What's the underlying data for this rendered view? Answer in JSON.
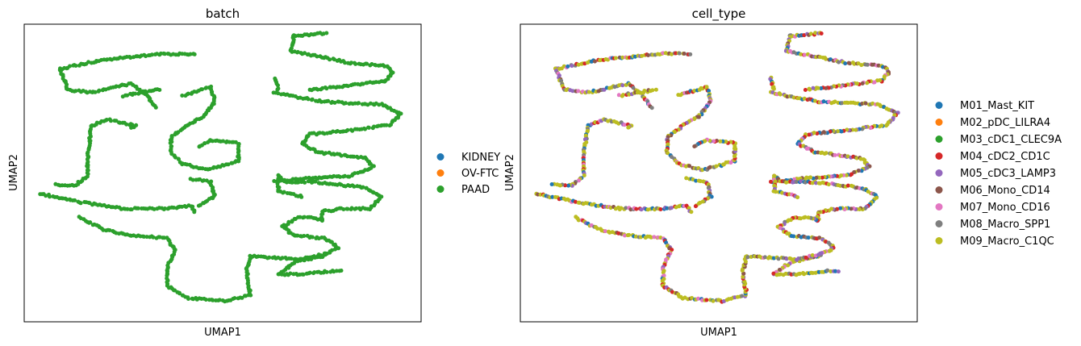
{
  "chart_data": [
    {
      "type": "scatter",
      "title": "batch",
      "xlabel": "UMAP1",
      "ylabel": "UMAP2",
      "grid": false,
      "legend_position": "right",
      "legend": [
        {
          "label": "KIDNEY",
          "color": "#1f77b4"
        },
        {
          "label": "OV-FTC",
          "color": "#ff7f0e"
        },
        {
          "label": "PAAD",
          "color": "#2ca02c"
        }
      ],
      "point_groups": [
        "PAAD"
      ],
      "xlim": [
        0,
        100
      ],
      "ylim": [
        0,
        100
      ],
      "curves": [
        [
          [
            9,
            85
          ],
          [
            20,
            88
          ],
          [
            35,
            90
          ],
          [
            43,
            90
          ]
        ],
        [
          [
            9,
            85
          ],
          [
            11,
            78
          ],
          [
            17,
            77
          ],
          [
            27,
            80
          ],
          [
            31,
            76
          ],
          [
            33,
            72
          ]
        ],
        [
          [
            63,
            82
          ],
          [
            64,
            78
          ]
        ],
        [
          [
            63,
            77
          ],
          [
            75,
            74
          ],
          [
            90,
            73
          ],
          [
            95,
            70
          ],
          [
            92,
            66
          ],
          [
            80,
            64
          ],
          [
            72,
            63
          ],
          [
            70,
            60
          ],
          [
            74,
            57
          ],
          [
            86,
            55
          ],
          [
            88,
            52
          ],
          [
            82,
            49
          ],
          [
            70,
            48
          ],
          [
            63,
            47
          ]
        ],
        [
          [
            68,
            96
          ],
          [
            76,
            97
          ]
        ],
        [
          [
            68,
            96
          ],
          [
            67,
            91
          ],
          [
            75,
            89
          ],
          [
            82,
            87
          ],
          [
            91,
            86
          ],
          [
            93,
            84
          ],
          [
            91,
            81
          ],
          [
            85,
            80
          ],
          [
            79,
            79
          ],
          [
            72,
            78
          ]
        ],
        [
          [
            40,
            76
          ],
          [
            47,
            79
          ],
          [
            48,
            74
          ],
          [
            45,
            69
          ],
          [
            41,
            66
          ],
          [
            37,
            62
          ],
          [
            37,
            57
          ],
          [
            40,
            53
          ],
          [
            46,
            51
          ],
          [
            54,
            54
          ],
          [
            54,
            60
          ],
          [
            47,
            61
          ],
          [
            44,
            59
          ]
        ],
        [
          [
            25,
            76
          ],
          [
            34,
            78
          ]
        ],
        [
          [
            17,
            66
          ],
          [
            21,
            68
          ],
          [
            28,
            66
          ],
          [
            27,
            65
          ]
        ],
        [
          [
            17,
            66
          ],
          [
            16,
            56
          ],
          [
            16,
            49
          ],
          [
            13,
            46
          ],
          [
            8,
            46
          ]
        ],
        [
          [
            64,
            49
          ],
          [
            66,
            47
          ],
          [
            73,
            47
          ],
          [
            80,
            46
          ],
          [
            86,
            45
          ],
          [
            90,
            42
          ],
          [
            87,
            38
          ],
          [
            80,
            38
          ],
          [
            75,
            37
          ],
          [
            75,
            34
          ]
        ],
        [
          [
            64,
            49
          ],
          [
            64,
            44
          ],
          [
            70,
            42
          ]
        ],
        [
          [
            4,
            43
          ],
          [
            15,
            40
          ],
          [
            25,
            38
          ],
          [
            35,
            38
          ],
          [
            42,
            39
          ],
          [
            43,
            37
          ]
        ],
        [
          [
            42,
            48
          ],
          [
            47,
            47
          ],
          [
            48,
            42
          ],
          [
            44,
            39
          ]
        ],
        [
          [
            14,
            35
          ],
          [
            20,
            31
          ],
          [
            27,
            29
          ],
          [
            36,
            28
          ],
          [
            38,
            24
          ],
          [
            36,
            18
          ],
          [
            36,
            12
          ],
          [
            41,
            8
          ],
          [
            51,
            7
          ],
          [
            57,
            9
          ],
          [
            56,
            17
          ],
          [
            57,
            22
          ]
        ],
        [
          [
            75,
            34
          ],
          [
            73,
            35
          ],
          [
            69,
            35
          ],
          [
            65,
            32
          ],
          [
            68,
            29
          ],
          [
            76,
            28
          ],
          [
            79,
            25
          ],
          [
            75,
            22
          ],
          [
            68,
            20
          ],
          [
            66,
            18
          ],
          [
            64,
            16
          ]
        ],
        [
          [
            64,
            16
          ],
          [
            70,
            16
          ],
          [
            77,
            17
          ],
          [
            80,
            17
          ]
        ],
        [
          [
            57,
            22
          ],
          [
            70,
            21
          ],
          [
            76,
            23
          ]
        ]
      ]
    },
    {
      "type": "scatter",
      "title": "cell_type",
      "xlabel": "UMAP1",
      "ylabel": "UMAP2",
      "grid": false,
      "legend_position": "right",
      "legend": [
        {
          "label": "M01_Mast_KIT",
          "color": "#1f77b4"
        },
        {
          "label": "M02_pDC_LILRA4",
          "color": "#ff7f0e"
        },
        {
          "label": "M03_cDC1_CLEC9A",
          "color": "#2ca02c"
        },
        {
          "label": "M04_cDC2_CD1C",
          "color": "#d62728"
        },
        {
          "label": "M05_cDC3_LAMP3",
          "color": "#9467bd"
        },
        {
          "label": "M06_Mono_CD14",
          "color": "#8c564b"
        },
        {
          "label": "M07_Mono_CD16",
          "color": "#e377c2"
        },
        {
          "label": "M08_Macro_SPP1",
          "color": "#7f7f7f"
        },
        {
          "label": "M09_Macro_C1QC",
          "color": "#bcbd22"
        }
      ],
      "point_groups": [
        "M09_Macro_C1QC",
        "M08_Macro_SPP1",
        "M01_Mast_KIT",
        "M04_cDC2_CD1C",
        "M06_Mono_CD14",
        "M07_Mono_CD16",
        "M05_cDC3_LAMP3"
      ],
      "xlim": [
        0,
        100
      ],
      "ylim": [
        0,
        100
      ],
      "same_embedding_as": "batch"
    }
  ]
}
